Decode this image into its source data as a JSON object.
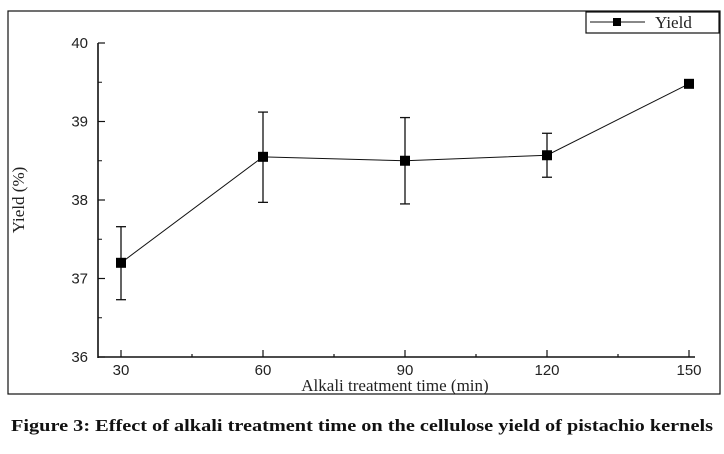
{
  "chart_data": {
    "type": "line",
    "title": "",
    "caption": "Figure 3: Effect of alkali treatment time on the cellulose yield of pistachio kernels",
    "xlabel": "Alkali treatment time (min)",
    "ylabel": "Yield (%)",
    "xlim": [
      30,
      150
    ],
    "ylim": [
      36,
      40
    ],
    "xticks": [
      "30",
      "60",
      "90",
      "120",
      "150"
    ],
    "yticks": [
      "36",
      "37",
      "38",
      "39",
      "40"
    ],
    "legend": {
      "placement": "top-right",
      "entries": [
        "Yield"
      ]
    },
    "grid": false,
    "series": [
      {
        "name": "Yield",
        "x": [
          30,
          60,
          90,
          120,
          150
        ],
        "y": [
          37.2,
          38.55,
          38.5,
          38.57,
          39.48
        ],
        "err_low": [
          36.73,
          37.97,
          37.95,
          38.29,
          null
        ],
        "err_high": [
          37.66,
          39.12,
          39.05,
          38.85,
          null
        ]
      }
    ]
  }
}
